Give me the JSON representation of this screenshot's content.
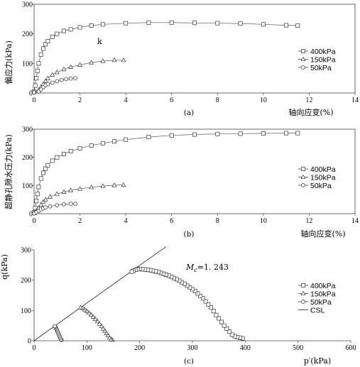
{
  "chart_data": [
    {
      "id": "a",
      "type": "line",
      "caption": "(a)",
      "xlabel": "轴向应变(%)",
      "ylabel": "偏应力(kPa)",
      "xlim": [
        0,
        14
      ],
      "ylim": [
        0,
        300
      ],
      "xticks": [
        0,
        2,
        4,
        6,
        8,
        10,
        12,
        14
      ],
      "yticks": [
        0,
        100,
        200,
        300
      ],
      "annotation": "k",
      "legend": "right",
      "series": [
        {
          "name": "400kPa",
          "marker": "square",
          "x": [
            0,
            0.05,
            0.1,
            0.15,
            0.2,
            0.3,
            0.4,
            0.5,
            0.6,
            0.8,
            1.0,
            1.3,
            1.6,
            2.0,
            2.5,
            3.0,
            4.0,
            5.0,
            6.0,
            7.0,
            8.0,
            9.0,
            10.0,
            11.0,
            11.5
          ],
          "y": [
            5,
            25,
            50,
            75,
            100,
            130,
            150,
            165,
            175,
            190,
            200,
            210,
            215,
            222,
            228,
            232,
            236,
            238,
            238,
            237,
            236,
            235,
            232,
            229,
            228
          ]
        },
        {
          "name": "150kPa",
          "marker": "triangle",
          "x": [
            0,
            0.2,
            0.3,
            0.4,
            0.5,
            0.6,
            0.8,
            1.0,
            1.3,
            1.6,
            2.0,
            2.5,
            3.0,
            3.5,
            3.9
          ],
          "y": [
            3,
            10,
            20,
            30,
            40,
            50,
            62,
            70,
            80,
            88,
            95,
            103,
            108,
            111,
            111
          ]
        },
        {
          "name": "50kPa",
          "marker": "circle",
          "x": [
            0,
            0.2,
            0.3,
            0.4,
            0.5,
            0.6,
            0.8,
            1.0,
            1.2,
            1.4,
            1.6,
            1.8
          ],
          "y": [
            2,
            5,
            12,
            20,
            26,
            30,
            35,
            40,
            44,
            47,
            49,
            50
          ]
        }
      ]
    },
    {
      "id": "b",
      "type": "line",
      "caption": "(b)",
      "xlabel": "轴向应变(%)",
      "ylabel": "超静孔隙水压力(kPa)",
      "xlim": [
        0,
        14
      ],
      "ylim": [
        0,
        300
      ],
      "xticks": [
        0,
        2,
        4,
        6,
        8,
        10,
        12,
        14
      ],
      "yticks": [
        0,
        100,
        200,
        300
      ],
      "legend": "right",
      "series": [
        {
          "name": "400kPa",
          "marker": "square",
          "x": [
            0,
            0.05,
            0.1,
            0.15,
            0.2,
            0.3,
            0.4,
            0.5,
            0.6,
            0.8,
            1.0,
            1.3,
            1.6,
            2.0,
            2.5,
            3.0,
            3.5,
            4.0,
            5.0,
            6.0,
            7.0,
            8.0,
            9.0,
            10.0,
            11.0,
            11.5
          ],
          "y": [
            5,
            20,
            45,
            70,
            95,
            125,
            145,
            160,
            172,
            188,
            200,
            212,
            222,
            232,
            242,
            250,
            257,
            263,
            272,
            278,
            281,
            283,
            284,
            285,
            286,
            286
          ]
        },
        {
          "name": "150kPa",
          "marker": "triangle",
          "x": [
            0,
            0.1,
            0.2,
            0.3,
            0.4,
            0.5,
            0.7,
            1.0,
            1.3,
            1.6,
            2.0,
            2.5,
            3.0,
            3.5,
            3.9
          ],
          "y": [
            2,
            10,
            20,
            32,
            42,
            50,
            60,
            70,
            77,
            83,
            88,
            94,
            98,
            101,
            102
          ]
        },
        {
          "name": "50kPa",
          "marker": "circle",
          "x": [
            0,
            0.1,
            0.2,
            0.3,
            0.4,
            0.5,
            0.7,
            1.0,
            1.3,
            1.6,
            1.8
          ],
          "y": [
            1,
            5,
            10,
            15,
            19,
            22,
            26,
            30,
            33,
            35,
            35
          ]
        }
      ]
    },
    {
      "id": "c",
      "type": "scatter",
      "caption": "(c)",
      "xlabel": "p′(kPa)",
      "ylabel": "q(kPa)",
      "xlim": [
        0,
        600
      ],
      "ylim": [
        0,
        300
      ],
      "xticks": [
        0,
        100,
        200,
        300,
        400,
        500,
        600
      ],
      "yticks": [
        0,
        100,
        200,
        300
      ],
      "annotation": "Mc=1.243",
      "annotation_main": "M",
      "annotation_sub": "c",
      "annotation_value": "=1. 243",
      "legend": "right",
      "csl": {
        "name": "CSL",
        "slope": 1.243
      },
      "series": [
        {
          "name": "400kPa",
          "marker": "square",
          "x": [
            395,
            390,
            385,
            380,
            375,
            370,
            365,
            360,
            355,
            350,
            345,
            340,
            335,
            330,
            325,
            320,
            315,
            310,
            305,
            300,
            295,
            290,
            285,
            280,
            275,
            270,
            265,
            260,
            255,
            250,
            245,
            240,
            235,
            230,
            225,
            220,
            215,
            210,
            205,
            200,
            196,
            192,
            188,
            185
          ],
          "y": [
            8,
            10,
            12,
            15,
            20,
            30,
            40,
            50,
            62,
            74,
            85,
            98,
            110,
            120,
            130,
            140,
            148,
            156,
            164,
            170,
            176,
            182,
            188,
            193,
            198,
            203,
            207,
            211,
            215,
            218,
            221,
            224,
            227,
            229,
            231,
            233,
            234,
            235,
            236,
            237,
            236,
            234,
            231,
            228
          ]
        },
        {
          "name": "150kPa",
          "marker": "triangle",
          "x": [
            148,
            146,
            143,
            140,
            137,
            134,
            131,
            128,
            124,
            120,
            116,
            112,
            108,
            104,
            100,
            96,
            92,
            88
          ],
          "y": [
            3,
            5,
            10,
            18,
            25,
            33,
            40,
            48,
            56,
            64,
            72,
            79,
            86,
            92,
            98,
            103,
            108,
            110
          ]
        },
        {
          "name": "50kPa",
          "marker": "circle",
          "x": [
            52,
            51,
            50,
            49,
            48,
            47,
            46,
            45,
            44,
            43,
            42,
            41,
            40,
            39
          ],
          "y": [
            2,
            4,
            8,
            12,
            16,
            20,
            24,
            28,
            32,
            36,
            40,
            43,
            46,
            48
          ]
        }
      ]
    }
  ]
}
